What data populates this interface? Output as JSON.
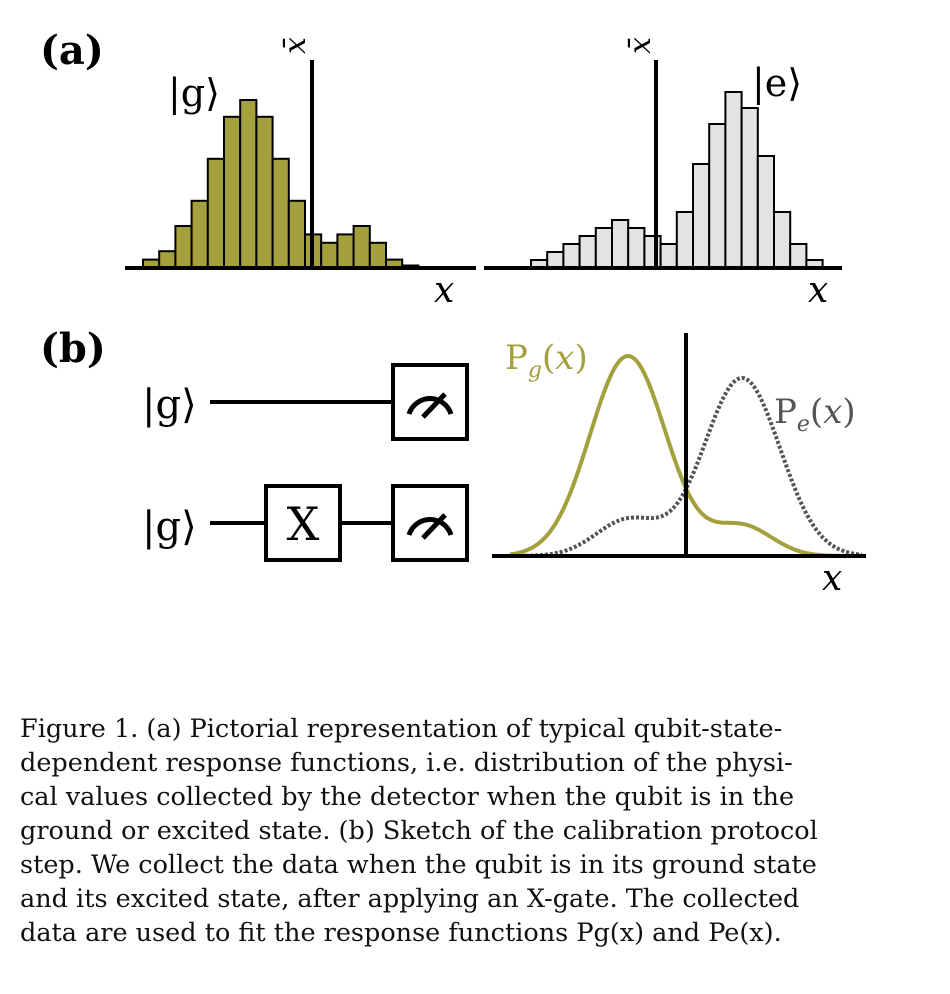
{
  "panel_a": {
    "label": "(a)",
    "ground": {
      "ket": "|g⟩",
      "xbar": "x̄",
      "xaxis": "x",
      "color": "#a5a03e",
      "values": [
        1,
        2,
        5,
        8,
        13,
        18,
        20,
        18,
        13,
        8,
        4,
        3,
        4,
        5,
        3,
        1,
        0.3
      ]
    },
    "excited": {
      "ket": "|e⟩",
      "xbar": "x̄",
      "xaxis": "x",
      "color": "#e3e3e3",
      "values": [
        1,
        2,
        3,
        4,
        5,
        6,
        5,
        4,
        3,
        7,
        13,
        18,
        22,
        20,
        14,
        7,
        3,
        1
      ]
    }
  },
  "panel_b": {
    "label": "(b)",
    "circuit": {
      "row1_input": "|g⟩",
      "row2_input": "|g⟩",
      "gate": "X"
    },
    "curves": {
      "pg_label": "Pg(x)",
      "pe_label": "Pe(x)",
      "xaxis": "x",
      "pg_color": "#a5a03e",
      "pe_color": "#555555"
    }
  },
  "caption": {
    "lines": [
      "Figure 1.  (a) Pictorial representation of typical qubit-state-",
      "dependent response functions, i.e.  distribution of the physi-",
      "cal values collected by the detector when the qubit is in the",
      "ground or excited state.  (b) Sketch of the calibration protocol",
      "step.  We collect the data when the qubit is in its ground state",
      "and its excited state, after applying an X-gate.  The collected",
      "data are used to fit the response functions Pg(x) and Pe(x)."
    ]
  }
}
